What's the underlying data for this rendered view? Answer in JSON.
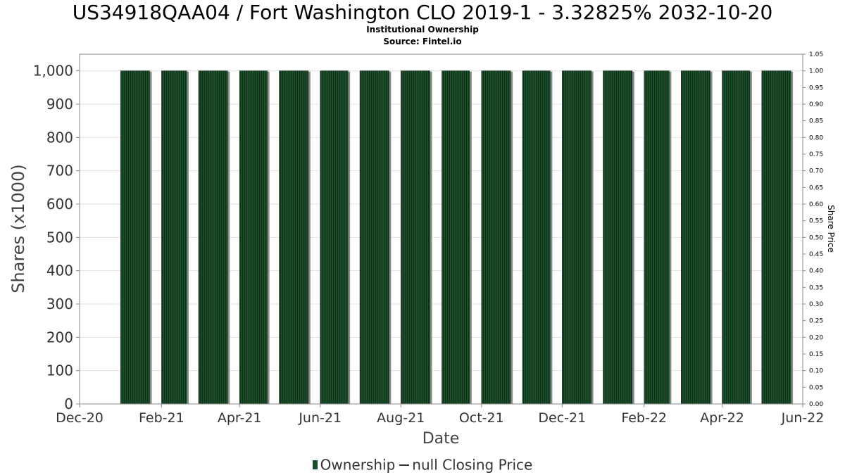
{
  "title": "US34918QAA04 / Fort Washington CLO 2019-1 - 3.32825% 2032-10-20",
  "subtitle1": "Institutional Ownership",
  "subtitle2": "Source: Fintel.io",
  "legend": {
    "ownership": "Ownership",
    "price": "null Closing Price"
  },
  "colors": {
    "bar": "#1b4d2b",
    "bar_shadow": "#8a8a8a",
    "plot_border": "#888888",
    "grid": "#e2e2e2"
  },
  "chart_data": {
    "type": "bar",
    "xlabel": "Date",
    "ylabel": "Shares (x1000)",
    "y2label": "Share Price",
    "xlim": [
      "2020-12-01",
      "2022-06-01"
    ],
    "ylim": [
      0,
      1050
    ],
    "y2lim": [
      0,
      1.05
    ],
    "x_ticks": [
      "Dec-20",
      "Feb-21",
      "Apr-21",
      "Jun-21",
      "Aug-21",
      "Oct-21",
      "Dec-21",
      "Feb-22",
      "Apr-22",
      "Jun-22"
    ],
    "y_ticks": [
      "0",
      "100",
      "200",
      "300",
      "400",
      "500",
      "600",
      "700",
      "800",
      "900",
      "1,000"
    ],
    "y2_ticks": [
      "0.00",
      "0.05",
      "0.10",
      "0.15",
      "0.20",
      "0.25",
      "0.30",
      "0.35",
      "0.40",
      "0.45",
      "0.50",
      "0.55",
      "0.60",
      "0.65",
      "0.70",
      "0.75",
      "0.80",
      "0.85",
      "0.90",
      "0.95",
      "1.00",
      "1.05"
    ],
    "series": [
      {
        "name": "Ownership",
        "bars": [
          {
            "start": "2021-01-01",
            "end": "2021-01-23",
            "value": 1000
          },
          {
            "start": "2021-02-01",
            "end": "2021-02-20",
            "value": 1000
          },
          {
            "start": "2021-03-01",
            "end": "2021-03-23",
            "value": 1000
          },
          {
            "start": "2021-04-01",
            "end": "2021-04-22",
            "value": 1000
          },
          {
            "start": "2021-05-01",
            "end": "2021-05-23",
            "value": 1000
          },
          {
            "start": "2021-06-01",
            "end": "2021-06-22",
            "value": 1000
          },
          {
            "start": "2021-07-01",
            "end": "2021-07-23",
            "value": 1000
          },
          {
            "start": "2021-08-01",
            "end": "2021-08-23",
            "value": 1000
          },
          {
            "start": "2021-09-01",
            "end": "2021-09-22",
            "value": 1000
          },
          {
            "start": "2021-10-01",
            "end": "2021-10-23",
            "value": 1000
          },
          {
            "start": "2021-11-01",
            "end": "2021-11-22",
            "value": 1000
          },
          {
            "start": "2021-12-01",
            "end": "2021-12-23",
            "value": 1000
          },
          {
            "start": "2022-01-01",
            "end": "2022-01-23",
            "value": 1000
          },
          {
            "start": "2022-02-01",
            "end": "2022-02-20",
            "value": 1000
          },
          {
            "start": "2022-03-01",
            "end": "2022-03-23",
            "value": 1000
          },
          {
            "start": "2022-04-01",
            "end": "2022-04-22",
            "value": 1000
          },
          {
            "start": "2022-05-01",
            "end": "2022-05-23",
            "value": 1000
          }
        ]
      },
      {
        "name": "null Closing Price",
        "values": []
      }
    ],
    "grid": true,
    "legend_position": "bottom"
  }
}
